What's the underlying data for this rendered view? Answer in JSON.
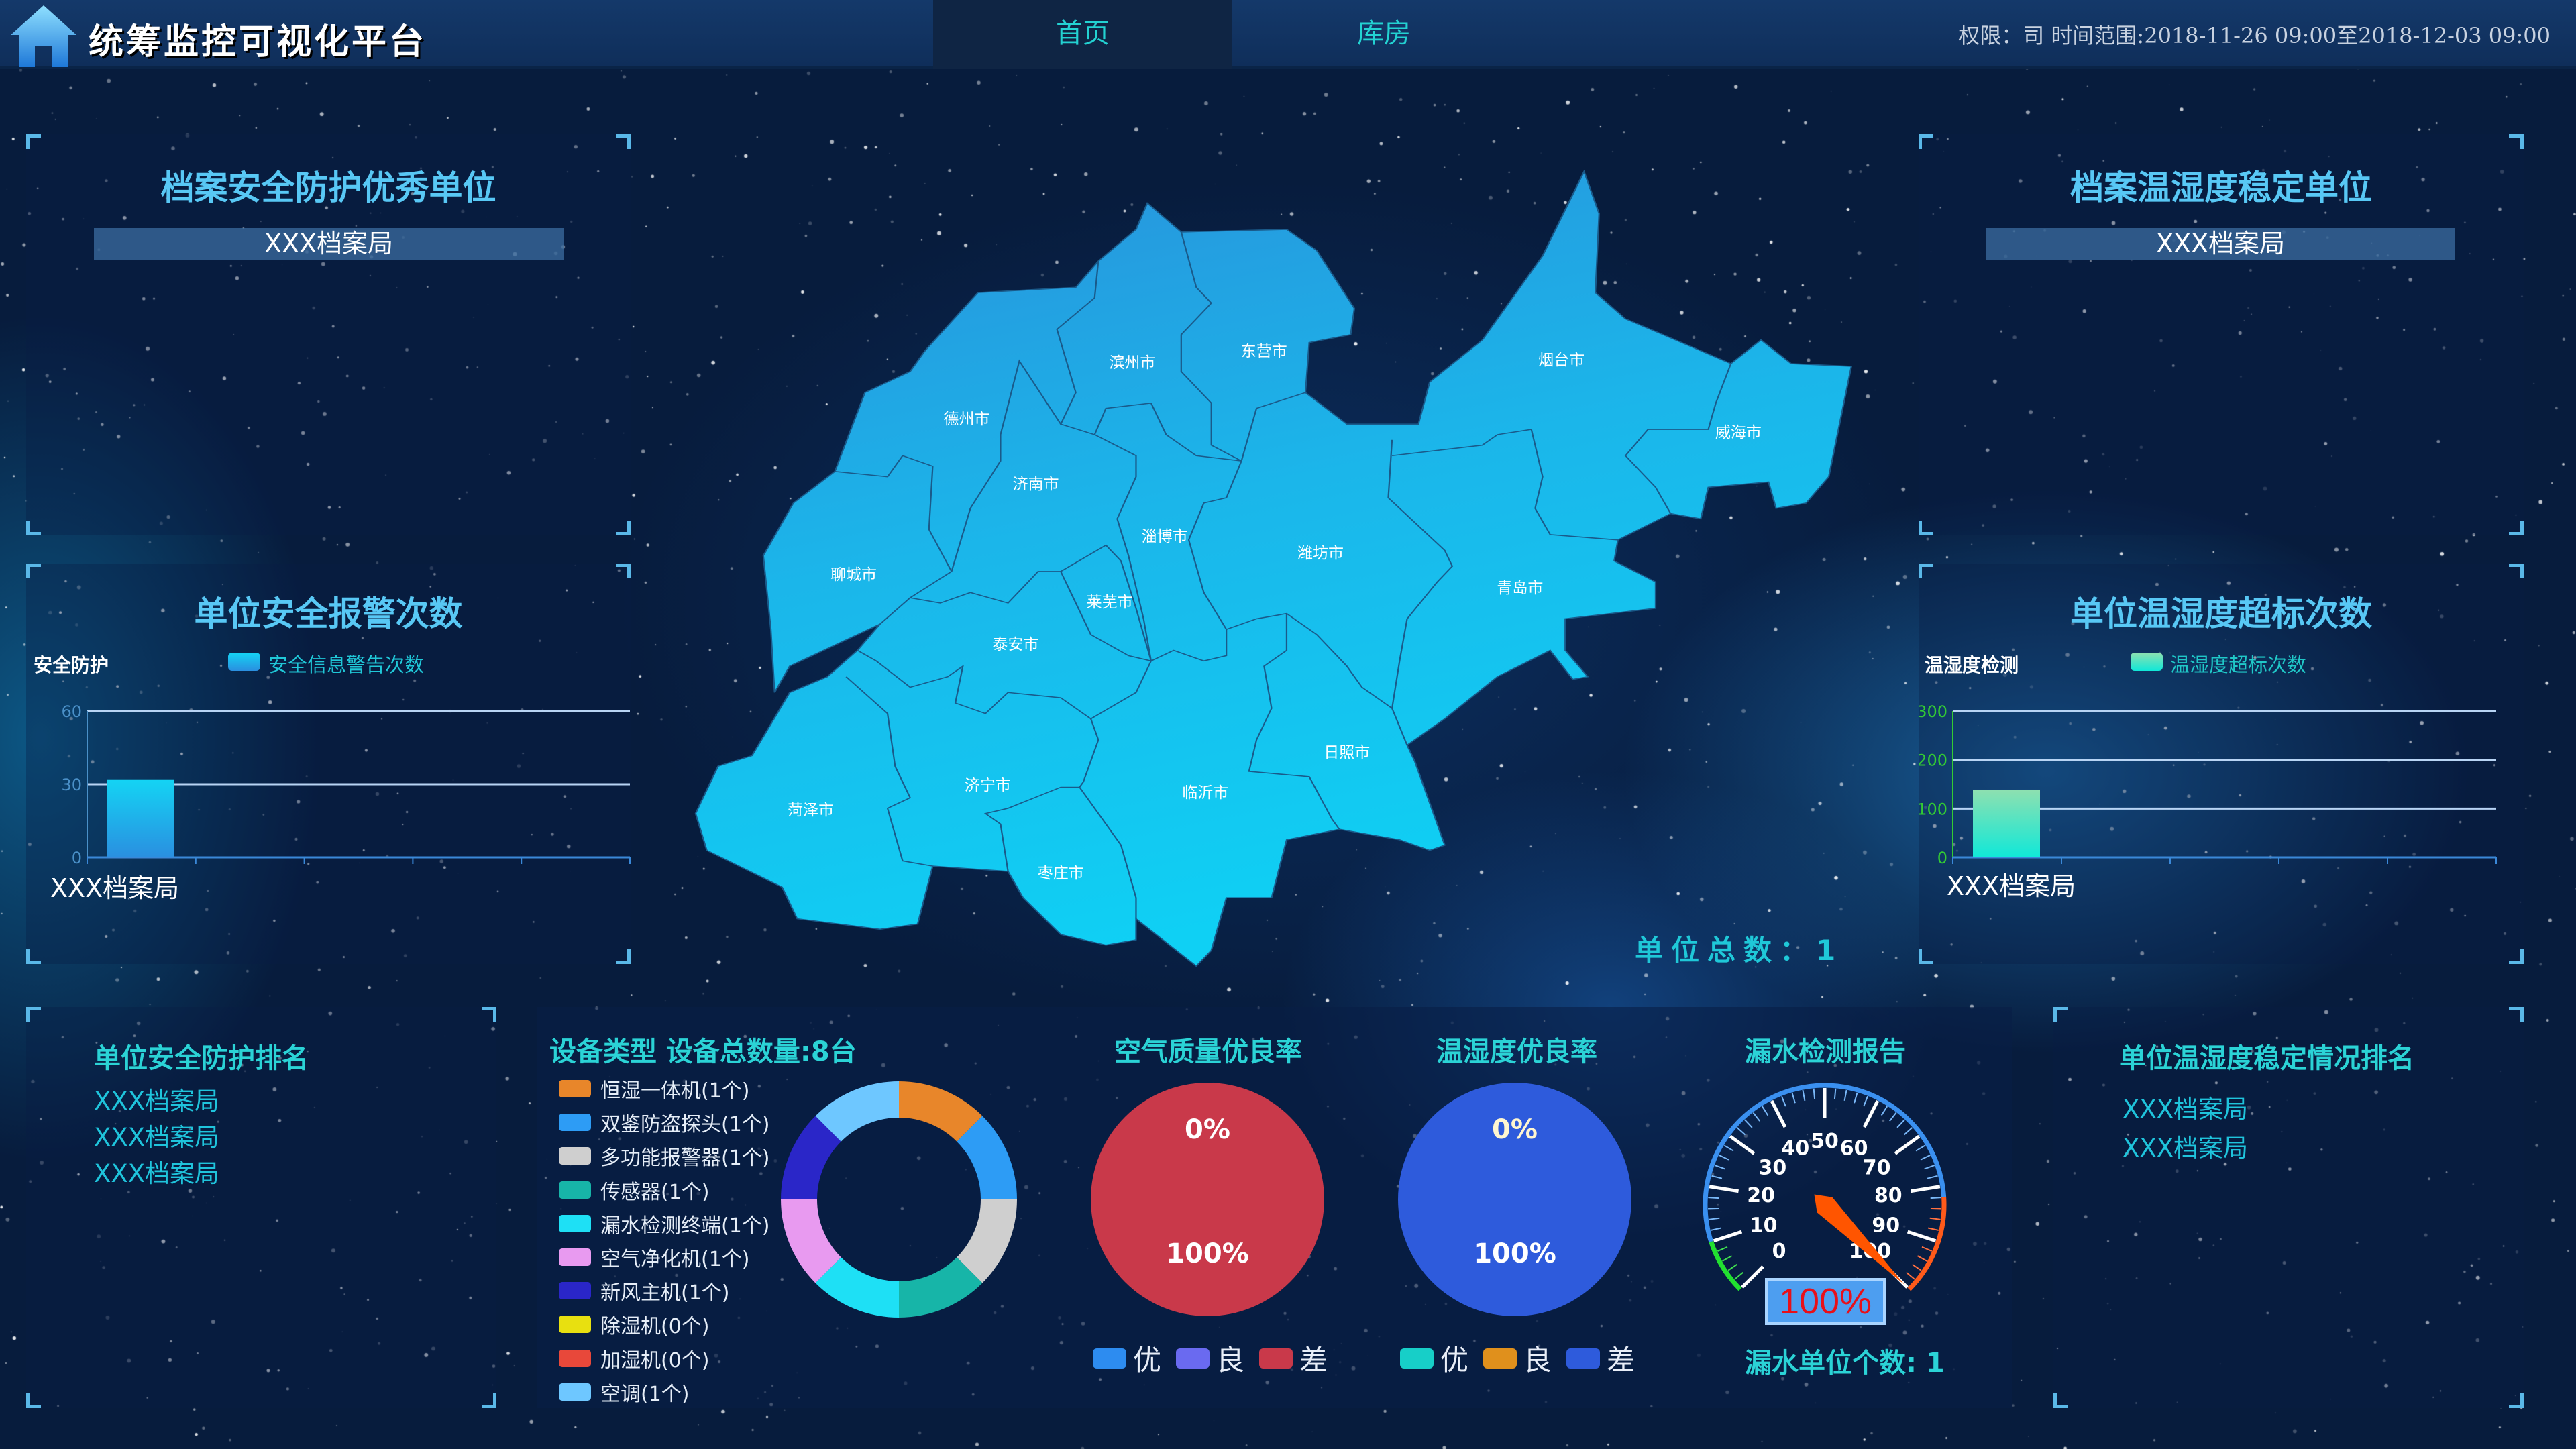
{
  "header": {
    "title": "统筹监控可视化平台",
    "tabs": [
      {
        "label": "首页",
        "active": true
      },
      {
        "label": "库房",
        "active": false
      }
    ],
    "info": "权限：司 时间范围:2018-11-26 09:00至2018-12-03 09:00"
  },
  "top_left": {
    "title": "档案安全防护优秀单位",
    "units": [
      "XXX档案局"
    ]
  },
  "top_right": {
    "title": "档案温湿度稳定单位",
    "units": [
      "XXX档案局"
    ]
  },
  "mid_left": {
    "title": "单位安全报警次数",
    "chart_data": {
      "type": "bar",
      "subtitle": "安全防护",
      "legend": "安全信息警告次数",
      "categories": [
        "XXX档案局"
      ],
      "values": [
        32
      ],
      "ylim": [
        0,
        60
      ],
      "yticks": [
        "0",
        "30",
        "60"
      ],
      "colors": {
        "top": "#14d4f4",
        "bottom": "#2a8fe0",
        "tick": "#4a90c8"
      }
    }
  },
  "mid_right": {
    "title": "单位温湿度超标次数",
    "chart_data": {
      "type": "bar",
      "subtitle": "温湿度检测",
      "legend": "温湿度超标次数",
      "categories": [
        "XXX档案局"
      ],
      "values": [
        139
      ],
      "ylim": [
        0,
        300
      ],
      "yticks": [
        "0",
        "100",
        "200",
        "300"
      ],
      "colors": {
        "top": "#8ee0b0",
        "bottom": "#10e8d8",
        "tick": "#33cc33"
      }
    }
  },
  "map": {
    "cities": [
      "滨州市",
      "东营市",
      "烟台市",
      "威海市",
      "德州市",
      "济南市",
      "淄博市",
      "潍坊市",
      "聊城市",
      "青岛市",
      "莱芜市",
      "泰安市",
      "日照市",
      "济宁市",
      "临沂市",
      "菏泽市",
      "枣庄市"
    ],
    "total_label": "单位总数：1"
  },
  "bottom_left": {
    "title": "单位安全防护排名",
    "items": [
      "XXX档案局",
      "XXX档案局",
      "XXX档案局"
    ]
  },
  "bottom_right": {
    "title": "单位温湿度稳定情况排名",
    "items": [
      "XXX档案局",
      "XXX档案局"
    ]
  },
  "devices": {
    "title": "设备类型 设备总数量:8台",
    "chart_data": {
      "type": "pie",
      "items": [
        {
          "label": "恒湿一体机(1个)",
          "value": 1,
          "color": "#e8862a"
        },
        {
          "label": "双鉴防盗探头(1个)",
          "value": 1,
          "color": "#2d9cf5"
        },
        {
          "label": "多功能报警器(1个)",
          "value": 1,
          "color": "#cfcfcf"
        },
        {
          "label": "传感器(1个)",
          "value": 1,
          "color": "#17b5a8"
        },
        {
          "label": "漏水检测终端(1个)",
          "value": 1,
          "color": "#1ee0f5"
        },
        {
          "label": "空气净化机(1个)",
          "value": 1,
          "color": "#e89af0"
        },
        {
          "label": "新风主机(1个)",
          "value": 1,
          "color": "#2a26c8"
        },
        {
          "label": "除湿机(0个)",
          "value": 0,
          "color": "#e8e010"
        },
        {
          "label": "加湿机(0个)",
          "value": 0,
          "color": "#e8483a"
        },
        {
          "label": "空调(1个)",
          "value": 1,
          "color": "#6ec7ff"
        }
      ]
    }
  },
  "air_quality": {
    "title": "空气质量优良率",
    "chart_data": {
      "type": "pie",
      "labels": [
        "0%",
        "100%"
      ],
      "legend": [
        {
          "label": "优",
          "value": 0,
          "color": "#2d8cf0"
        },
        {
          "label": "良",
          "value": 0,
          "color": "#6a6af0"
        },
        {
          "label": "差",
          "value": 100,
          "color": "#c9394a"
        }
      ]
    }
  },
  "temp_humidity": {
    "title": "温湿度优良率",
    "chart_data": {
      "type": "pie",
      "labels": [
        "0%",
        "100%"
      ],
      "legend": [
        {
          "label": "优",
          "value": 0,
          "color": "#17cfc8"
        },
        {
          "label": "良",
          "value": 0,
          "color": "#e0901c"
        },
        {
          "label": "差",
          "value": 100,
          "color": "#2e5bdc"
        }
      ]
    }
  },
  "leak": {
    "title": "漏水检测报告",
    "gauge": {
      "value": 100,
      "min": 0,
      "max": 100,
      "ticks": [
        "0",
        "10",
        "20",
        "30",
        "40",
        "50",
        "60",
        "70",
        "80",
        "90",
        "100"
      ],
      "display": "100%"
    },
    "count_label": "漏水单位个数: 1"
  }
}
